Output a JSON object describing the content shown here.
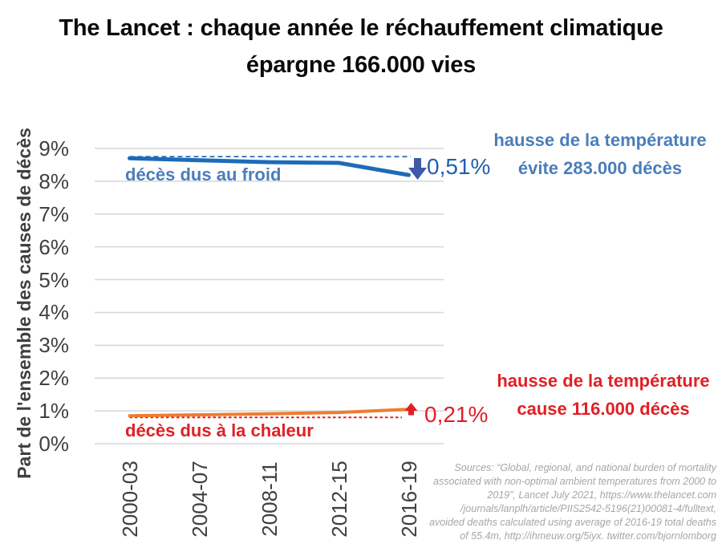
{
  "title": {
    "line1": "The Lancet : chaque année le réchauffement climatique",
    "line2": "épargne 166.000 vies"
  },
  "chart_data": {
    "type": "line",
    "categories": [
      "2000-03",
      "2004-07",
      "2008-11",
      "2012-15",
      "2016-19"
    ],
    "series": [
      {
        "name": "décès dus au froid",
        "color": "#1e6bb8",
        "values": [
          8.7,
          8.64,
          8.58,
          8.56,
          8.19
        ]
      },
      {
        "name": "décès dus à la chaleur",
        "color": "#ed7d31",
        "values": [
          0.85,
          0.88,
          0.91,
          0.95,
          1.05
        ]
      }
    ],
    "title": "The Lancet : chaque année le réchauffement climatique épargne 166.000 vies",
    "xlabel": "",
    "ylabel": "Part de l'ensemble des causes de décès",
    "ylim": [
      0,
      9
    ],
    "ytick_labels": [
      "9%",
      "8%",
      "7%",
      "6%",
      "5%",
      "4%",
      "3%",
      "2%",
      "1%",
      "0%"
    ],
    "grid": true,
    "legend_position": "none"
  },
  "annotations": {
    "cold_series_label": "décès dus au froid",
    "heat_series_label": "décès dus à la chaleur",
    "cold_delta": "0,51%",
    "heat_delta": "0,21%",
    "cold_note_line1": "hausse de la température",
    "cold_note_line2": "évite 283.000 décès",
    "heat_note_line1": "hausse de la température",
    "heat_note_line2": "cause 116.000 décès"
  },
  "sources_lines": [
    "Sources: “Global, regional, and national burden of mortality",
    "associated with non-optimal ambient temperatures from 2000 to",
    "2019”, Lancet July 2021, https://www.thelancet.com",
    "/journals/lanplh/article/PIIS2542-5196(21)00081-4/fulltext,",
    "avoided deaths calculated using average of 2016-19 total deaths",
    "of 55.4m, http://ihmeuw.org/5iyx. twitter.com/bjornlomborg"
  ],
  "colors": {
    "title_text": "#0a0a0a",
    "axis_text": "#404040",
    "gridline": "#d6d6d6",
    "cold_line": "#1e6bb8",
    "cold_text": "#4a7ebb",
    "cold_delta_text": "#2060b0",
    "cold_arrow": "#3f58a8",
    "heat_line": "#ed7d31",
    "heat_text": "#e02025",
    "sources_text": "#a6a6a6"
  }
}
